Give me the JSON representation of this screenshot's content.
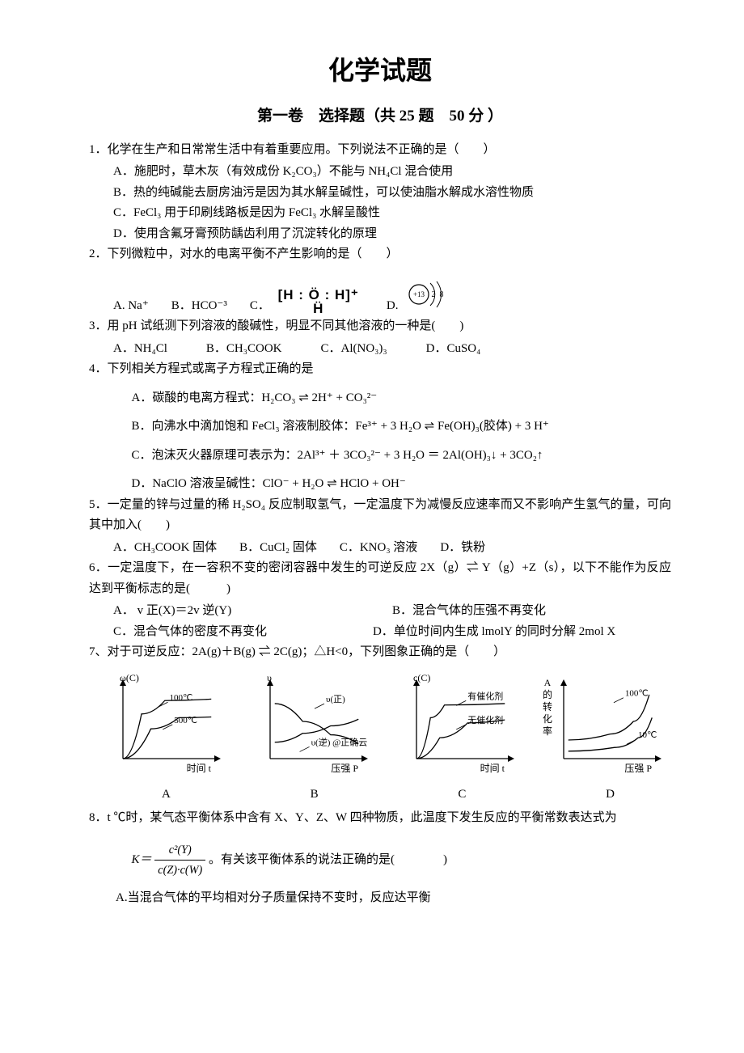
{
  "title": "化学试题",
  "subtitle": "第一卷　选择题（共 25 题　50 分 ）",
  "q1": {
    "stem": "1．化学在生产和日常常生活中有着重要应用。下列说法不正确的是（　　）",
    "A": "A．施肥时，草木灰（有效成份 K₂CO₃）不能与 NH₄Cl 混合使用",
    "B": "B．热的纯碱能去厨房油污是因为其水解呈碱性，可以使油脂水解成水溶性物质",
    "C": "C．FeCl₃ 用于印刷线路板是因为 FeCl₃ 水解呈酸性",
    "D": "D．使用含氟牙膏预防龋齿利用了沉淀转化的原理"
  },
  "q2": {
    "stem": "2．下列微粒中，对水的电离平衡不产生影响的是（　　）",
    "A": "A. Na⁺",
    "B": "B．HCO⁻³",
    "C": "C．",
    "D": "D.",
    "h3o_top": "[H : Ö : H]⁺",
    "h3o_bot": "Ḧ",
    "atom_center": "+13",
    "atom_shell1": "2",
    "atom_shell2": "8"
  },
  "q3": {
    "stem": "3．用 pH 试纸测下列溶液的酸碱性，明显不同其他溶液的一种是(　　)",
    "A": "A．NH₄Cl",
    "B": "B．CH₃COOK",
    "C": "C．Al(NO₃)₃",
    "D": "D．CuSO₄"
  },
  "q4": {
    "stem": "4．下列相关方程式或离子方程式正确的是",
    "A": "A．碳酸的电离方程式：H₂CO₃ ⇌ 2H⁺ + CO₃²⁻",
    "B": "B．向沸水中滴加饱和 FeCl₃ 溶液制胶体：Fe³⁺ + 3 H₂O ⇌ Fe(OH)₃(胶体) + 3 H⁺",
    "C": "C．泡沫灭火器原理可表示为：2Al³⁺ ＋ 3CO₃²⁻ + 3 H₂O ＝ 2Al(OH)₃↓ + 3CO₂↑",
    "D": "D．NaClO 溶液呈碱性：ClO⁻ + H₂O ⇌ HClO + OH⁻"
  },
  "q5": {
    "stem": "5．一定量的锌与过量的稀 H₂SO₄ 反应制取氢气，一定温度下为减慢反应速率而又不影响产生氢气的量，可向其中加入(　　)",
    "A": "A．CH₃COOK 固体",
    "B": "B．CuCl₂ 固体",
    "C": "C．KNO₃ 溶液",
    "D": "D．铁粉"
  },
  "q6": {
    "stem": "6．一定温度下，在一容积不变的密闭容器中发生的可逆反应 2X（g）⇌ Y（g）+Z（s），以下不能作为反应达到平衡标志的是(　　　)",
    "A": "A．  v 正(X)＝2v 逆(Y)",
    "B": "B．混合气体的压强不再变化",
    "C": "C．混合气体的密度不再变化",
    "D": "D．单位时间内生成 lmolY 的同时分解 2mol X"
  },
  "q7": {
    "stem": "7、对于可逆反应：2A(g)＋B(g) ⇌ 2C(g)；△H<0，下列图象正确的是（　　）",
    "labels": {
      "A": "A",
      "B": "B",
      "C": "C",
      "D": "D"
    },
    "figA": {
      "ylabel": "ω(C)",
      "xlabel": "时间 t",
      "series": [
        {
          "label": "100℃",
          "color": "#000000",
          "points": [
            [
              0,
              0
            ],
            [
              20,
              60
            ],
            [
              45,
              78
            ],
            [
              95,
              80
            ]
          ]
        },
        {
          "label": "500℃",
          "color": "#000000",
          "points": [
            [
              0,
              0
            ],
            [
              30,
              40
            ],
            [
              60,
              55
            ],
            [
              95,
              56
            ]
          ]
        }
      ],
      "label_pos": {
        "100℃": [
          50,
          78
        ],
        "500℃": [
          55,
          48
        ]
      }
    },
    "figB": {
      "ylabel": "υ",
      "xlabel": "压强 P",
      "series": [
        {
          "label": "υ(正)",
          "points": [
            [
              5,
              74
            ],
            [
              35,
              50
            ],
            [
              65,
              32
            ],
            [
              95,
              20
            ]
          ]
        },
        {
          "label": "υ(逆) @正确云",
          "points": [
            [
              5,
              22
            ],
            [
              35,
              34
            ],
            [
              65,
              44
            ],
            [
              95,
              53
            ]
          ]
        }
      ],
      "label_pos": {
        "υ(正)": [
          60,
          76
        ],
        "υ(逆) @正确云": [
          44,
          18
        ]
      }
    },
    "figC": {
      "ylabel": "c(C)",
      "xlabel": "时间 t",
      "series": [
        {
          "label": "有催化剂",
          "points": [
            [
              0,
              0
            ],
            [
              15,
              55
            ],
            [
              30,
              72
            ],
            [
              95,
              74
            ]
          ]
        },
        {
          "label": "无催化剂",
          "points": [
            [
              0,
              0
            ],
            [
              25,
              28
            ],
            [
              55,
              48
            ],
            [
              95,
              52
            ]
          ]
        }
      ],
      "label_pos": {
        "有催化剂": [
          55,
          80
        ],
        "无催化剂": [
          55,
          48
        ]
      }
    },
    "figD": {
      "ylabel": "A 的 转 化 率",
      "xlabel": "压强 P",
      "series": [
        {
          "label": "100℃",
          "points": [
            [
              5,
              25
            ],
            [
              50,
              33
            ],
            [
              75,
              50
            ],
            [
              92,
              86
            ]
          ]
        },
        {
          "label": "10℃",
          "points": [
            [
              5,
              10
            ],
            [
              55,
              15
            ],
            [
              80,
              28
            ],
            [
              95,
              55
            ]
          ]
        }
      ],
      "label_pos": {
        "100℃": [
          66,
          84
        ],
        "10℃": [
          80,
          28
        ]
      }
    },
    "axis_color": "#000000",
    "line_color": "#000000",
    "line_width": 1.3,
    "bg": "#ffffff",
    "fig_w": 165,
    "fig_h": 140
  },
  "q8": {
    "stem_a": "8．t ℃时，某气态平衡体系中含有 X、Y、Z、W 四种物质，此温度下发生反应的平衡常数表达式为",
    "K": "K＝",
    "frac_num": "c²(Y)",
    "frac_den": "c(Z)·c(W)",
    "stem_b": "。有关该平衡体系的说法正确的是(　　　　) ",
    "A": "A.当混合气体的平均相对分子质量保持不变时，反应达平衡"
  }
}
